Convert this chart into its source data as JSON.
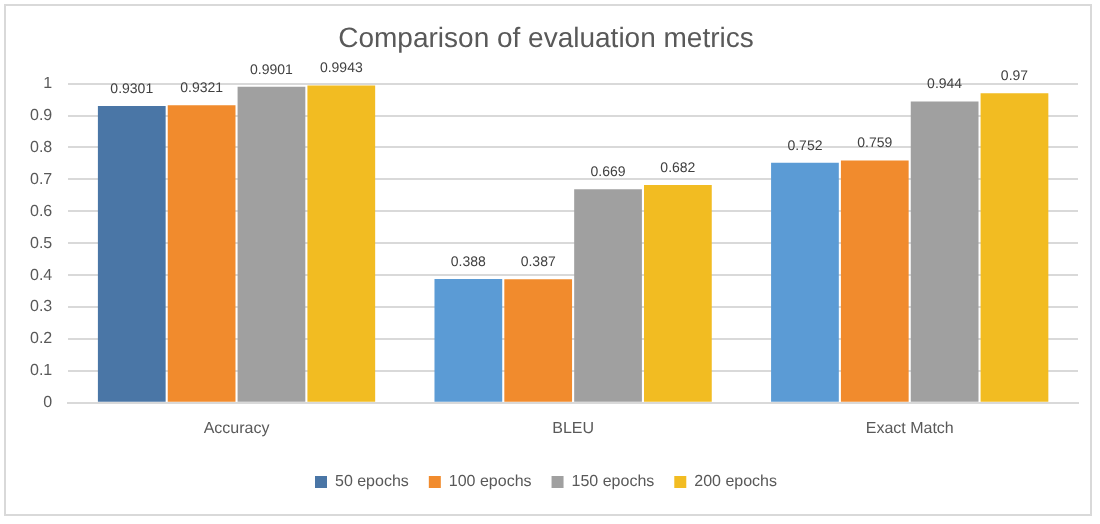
{
  "chart_data": {
    "type": "bar",
    "title": "Comparison of evaluation metrics",
    "categories": [
      "Accuracy",
      "BLEU",
      "Exact Match"
    ],
    "series": [
      {
        "name": "50 epochs",
        "color": "#5b9bd5",
        "colors": [
          "#4a76a6",
          "#5b9bd5",
          "#5b9bd5"
        ],
        "values": [
          0.9301,
          0.388,
          0.752
        ]
      },
      {
        "name": "100 epochs",
        "color": "#f18b2d",
        "values": [
          0.9321,
          0.387,
          0.759
        ]
      },
      {
        "name": "150 epochs",
        "color": "#a0a0a0",
        "values": [
          0.9901,
          0.669,
          0.944
        ]
      },
      {
        "name": "200 epochs",
        "color": "#f2bc22",
        "values": [
          0.9943,
          0.682,
          0.97
        ]
      }
    ],
    "ylim": [
      0,
      1
    ],
    "yticks": [
      0,
      0.1,
      0.2,
      0.3,
      0.4,
      0.5,
      0.6,
      0.7,
      0.8,
      0.9,
      1
    ],
    "grid": "y",
    "legend": "bottom",
    "data_labels": true
  }
}
